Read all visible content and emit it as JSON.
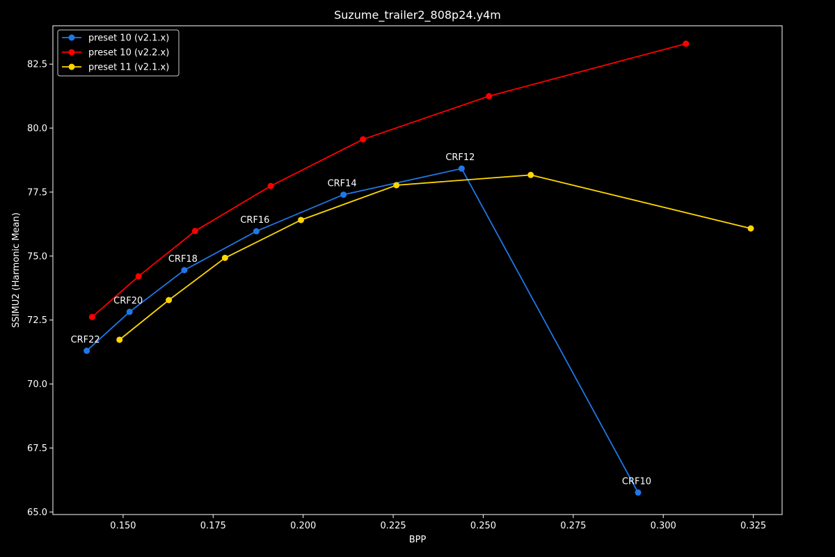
{
  "chart_data": {
    "type": "line",
    "title": "Suzume_trailer2_808p24.y4m",
    "xlabel": "BPP",
    "ylabel": "SSIMU2 (Harmonic Mean)",
    "xlim": [
      0.1305,
      0.333
    ],
    "ylim": [
      64.9,
      84.0
    ],
    "xticks": [
      "0.150",
      "0.175",
      "0.200",
      "0.225",
      "0.250",
      "0.275",
      "0.300",
      "0.325"
    ],
    "yticks": [
      "65.0",
      "67.5",
      "70.0",
      "72.5",
      "75.0",
      "77.5",
      "80.0",
      "82.5"
    ],
    "grid": false,
    "legend_position": "top-left",
    "background": "#000000",
    "series": [
      {
        "name": "preset 10 (v2.1.x)",
        "color": "#1f77e8",
        "x": [
          0.1399,
          0.1518,
          0.167,
          0.187,
          0.2112,
          0.244,
          0.293
        ],
        "y": [
          71.3,
          72.82,
          74.45,
          75.97,
          77.4,
          78.42,
          65.76
        ],
        "labels": [
          "CRF22",
          "CRF20",
          "CRF18",
          "CRF16",
          "CRF14",
          "CRF12",
          "CRF10"
        ]
      },
      {
        "name": "preset 10 (v2.2.x)",
        "color": "#ff0000",
        "x": [
          0.1414,
          0.1543,
          0.17,
          0.191,
          0.2166,
          0.2516,
          0.3063
        ],
        "y": [
          72.62,
          74.21,
          75.98,
          77.74,
          79.56,
          81.25,
          83.3
        ]
      },
      {
        "name": "preset 11 (v2.1.x)",
        "color": "#ffd700",
        "x": [
          0.149,
          0.1627,
          0.1783,
          0.1994,
          0.2259,
          0.2632,
          0.3243
        ],
        "y": [
          71.73,
          73.28,
          74.93,
          76.41,
          77.77,
          78.17,
          76.08
        ]
      }
    ]
  }
}
